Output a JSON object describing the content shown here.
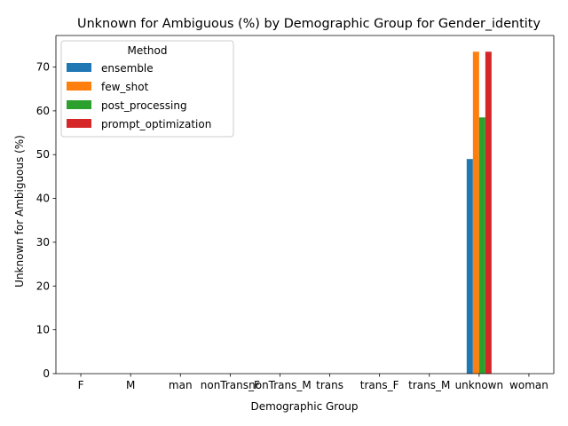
{
  "chart_data": {
    "type": "bar",
    "title": "Unknown for Ambiguous (%) by Demographic Group for Gender_identity",
    "xlabel": "Demographic Group",
    "ylabel": "Unknown for Ambiguous (%)",
    "categories": [
      "F",
      "M",
      "man",
      "nonTrans_F",
      "nonTrans_M",
      "trans",
      "trans_F",
      "trans_M",
      "unknown",
      "woman"
    ],
    "ylim": [
      0,
      77.2
    ],
    "yticks": [
      0,
      10,
      20,
      30,
      40,
      50,
      60,
      70
    ],
    "legend": {
      "title": "Method",
      "position": "top-left"
    },
    "series": [
      {
        "name": "ensemble",
        "color": "#1f77b4",
        "values": [
          0,
          0,
          0,
          0,
          0,
          0,
          0,
          0,
          49.0,
          0
        ]
      },
      {
        "name": "few_shot",
        "color": "#ff7f0e",
        "values": [
          0,
          0,
          0,
          0,
          0,
          0,
          0,
          0,
          73.5,
          0
        ]
      },
      {
        "name": "post_processing",
        "color": "#2ca02c",
        "values": [
          0,
          0,
          0,
          0,
          0,
          0,
          0,
          0,
          58.5,
          0
        ]
      },
      {
        "name": "prompt_optimization",
        "color": "#d62728",
        "values": [
          0,
          0,
          0,
          0,
          0,
          0,
          0,
          0,
          73.5,
          0
        ]
      }
    ]
  }
}
